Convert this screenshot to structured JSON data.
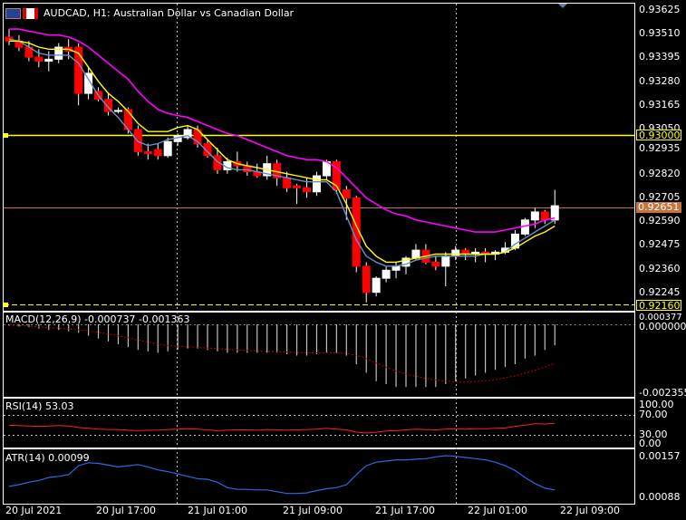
{
  "window": {
    "title": "AUDCAD, H1:  Australian Dollar vs Canadian Dollar"
  },
  "colors": {
    "background": "#000000",
    "grid": "#c0c0c0",
    "bull_body": "#ffffff",
    "bear_body": "#ff0000",
    "ma_fast": "#ffff00",
    "ma_mid": "#6a8fc8",
    "ma_slow": "#ff00ff",
    "hline": "#ffff00",
    "bid_line": "#c8733a",
    "macd_hist": "#c0c0c0",
    "macd_signal": "#c00000",
    "rsi_line": "#ff2020",
    "atr_line": "#2a6be0"
  },
  "price_axis": [
    "0.93625",
    "0.93510",
    "0.93395",
    "0.93280",
    "0.93165",
    "0.93050",
    "0.92935",
    "0.92820",
    "0.92705",
    "0.92590",
    "0.92475",
    "0.92360",
    "0.92245"
  ],
  "tags": {
    "level_high": "0.93000",
    "current_bid": "0.92651",
    "level_low": "0.92160"
  },
  "time_axis": [
    "20 Jul 2021",
    "20 Jul 17:00",
    "21 Jul 01:00",
    "21 Jul 09:00",
    "21 Jul 17:00",
    "22 Jul 01:00",
    "22 Jul 09:00"
  ],
  "macd": {
    "label": "MACD(12,26,9) -0.000737 -0.001363",
    "axis": [
      "0.000377",
      "0.000000",
      "-0.002355"
    ]
  },
  "rsi": {
    "label": "RSI(14) 53.03",
    "axis": [
      "100.00",
      "70.00",
      "30.00",
      "0.00"
    ]
  },
  "atr": {
    "label": "ATR(14) 0.00099",
    "axis": [
      "0.00157",
      "0.00088"
    ]
  },
  "chart_data": {
    "type": "candlestick",
    "symbol": "AUDCAD",
    "timeframe": "H1",
    "ylim": [
      0.9216,
      0.93625
    ],
    "candles": [
      {
        "o": 0.9349,
        "h": 0.9353,
        "l": 0.9345,
        "c": 0.9347
      },
      {
        "o": 0.9347,
        "h": 0.935,
        "l": 0.9342,
        "c": 0.9344
      },
      {
        "o": 0.9344,
        "h": 0.9347,
        "l": 0.9337,
        "c": 0.9339
      },
      {
        "o": 0.9339,
        "h": 0.9343,
        "l": 0.9334,
        "c": 0.9337
      },
      {
        "o": 0.9337,
        "h": 0.9342,
        "l": 0.9332,
        "c": 0.9338
      },
      {
        "o": 0.9338,
        "h": 0.9346,
        "l": 0.9336,
        "c": 0.9344
      },
      {
        "o": 0.9344,
        "h": 0.9348,
        "l": 0.9338,
        "c": 0.9342
      },
      {
        "o": 0.9344,
        "h": 0.9346,
        "l": 0.9315,
        "c": 0.9321
      },
      {
        "o": 0.9321,
        "h": 0.9334,
        "l": 0.9318,
        "c": 0.9331
      },
      {
        "o": 0.9322,
        "h": 0.9324,
        "l": 0.9317,
        "c": 0.9318
      },
      {
        "o": 0.9318,
        "h": 0.9321,
        "l": 0.931,
        "c": 0.9312
      },
      {
        "o": 0.9312,
        "h": 0.9314,
        "l": 0.9311,
        "c": 0.93125
      },
      {
        "o": 0.9313,
        "h": 0.9314,
        "l": 0.9301,
        "c": 0.9303
      },
      {
        "o": 0.9303,
        "h": 0.9305,
        "l": 0.929,
        "c": 0.9292
      },
      {
        "o": 0.9292,
        "h": 0.9296,
        "l": 0.9288,
        "c": 0.9291
      },
      {
        "o": 0.9293,
        "h": 0.9296,
        "l": 0.9288,
        "c": 0.929
      },
      {
        "o": 0.929,
        "h": 0.9299,
        "l": 0.9289,
        "c": 0.9297
      },
      {
        "o": 0.9297,
        "h": 0.9301,
        "l": 0.9295,
        "c": 0.93
      },
      {
        "o": 0.9299,
        "h": 0.9305,
        "l": 0.9298,
        "c": 0.9303
      },
      {
        "o": 0.9303,
        "h": 0.9305,
        "l": 0.9294,
        "c": 0.9296
      },
      {
        "o": 0.9296,
        "h": 0.9298,
        "l": 0.9289,
        "c": 0.929
      },
      {
        "o": 0.929,
        "h": 0.9294,
        "l": 0.9281,
        "c": 0.9283
      },
      {
        "o": 0.9283,
        "h": 0.9289,
        "l": 0.9281,
        "c": 0.9287
      },
      {
        "o": 0.9287,
        "h": 0.9292,
        "l": 0.9282,
        "c": 0.9285
      },
      {
        "o": 0.9285,
        "h": 0.9287,
        "l": 0.928,
        "c": 0.9282
      },
      {
        "o": 0.9282,
        "h": 0.9286,
        "l": 0.9279,
        "c": 0.928
      },
      {
        "o": 0.928,
        "h": 0.929,
        "l": 0.9278,
        "c": 0.9286
      },
      {
        "o": 0.9286,
        "h": 0.9288,
        "l": 0.9275,
        "c": 0.9279
      },
      {
        "o": 0.9279,
        "h": 0.9282,
        "l": 0.9272,
        "c": 0.9274
      },
      {
        "o": 0.9275,
        "h": 0.9276,
        "l": 0.9266,
        "c": 0.9274
      },
      {
        "o": 0.9274,
        "h": 0.9279,
        "l": 0.9269,
        "c": 0.9272
      },
      {
        "o": 0.9272,
        "h": 0.9282,
        "l": 0.927,
        "c": 0.928
      },
      {
        "o": 0.928,
        "h": 0.9288,
        "l": 0.9278,
        "c": 0.9287
      },
      {
        "o": 0.9287,
        "h": 0.9288,
        "l": 0.9271,
        "c": 0.9273
      },
      {
        "o": 0.9273,
        "h": 0.9275,
        "l": 0.9258,
        "c": 0.9269
      },
      {
        "o": 0.9269,
        "h": 0.927,
        "l": 0.9232,
        "c": 0.9235
      },
      {
        "o": 0.9235,
        "h": 0.9237,
        "l": 0.9217,
        "c": 0.9222
      },
      {
        "o": 0.9222,
        "h": 0.923,
        "l": 0.922,
        "c": 0.9229
      },
      {
        "o": 0.9229,
        "h": 0.9235,
        "l": 0.9227,
        "c": 0.9233
      },
      {
        "o": 0.9233,
        "h": 0.9237,
        "l": 0.9229,
        "c": 0.9235
      },
      {
        "o": 0.9235,
        "h": 0.924,
        "l": 0.9231,
        "c": 0.9239
      },
      {
        "o": 0.9239,
        "h": 0.9246,
        "l": 0.9238,
        "c": 0.9243
      },
      {
        "o": 0.9243,
        "h": 0.9246,
        "l": 0.9236,
        "c": 0.9237
      },
      {
        "o": 0.9237,
        "h": 0.924,
        "l": 0.9233,
        "c": 0.9235
      },
      {
        "o": 0.9235,
        "h": 0.9242,
        "l": 0.9225,
        "c": 0.924
      },
      {
        "o": 0.924,
        "h": 0.9245,
        "l": 0.9238,
        "c": 0.9243
      },
      {
        "o": 0.9243,
        "h": 0.9244,
        "l": 0.9238,
        "c": 0.9241
      },
      {
        "o": 0.9241,
        "h": 0.9244,
        "l": 0.9237,
        "c": 0.9242
      },
      {
        "o": 0.9242,
        "h": 0.9244,
        "l": 0.9237,
        "c": 0.9241
      },
      {
        "o": 0.9241,
        "h": 0.9243,
        "l": 0.9238,
        "c": 0.9242
      },
      {
        "o": 0.9242,
        "h": 0.9247,
        "l": 0.9241,
        "c": 0.9244
      },
      {
        "o": 0.9244,
        "h": 0.9253,
        "l": 0.9243,
        "c": 0.9251
      },
      {
        "o": 0.9251,
        "h": 0.9259,
        "l": 0.925,
        "c": 0.9258
      },
      {
        "o": 0.9258,
        "h": 0.9264,
        "l": 0.9254,
        "c": 0.9262
      },
      {
        "o": 0.9262,
        "h": 0.9263,
        "l": 0.9256,
        "c": 0.9258
      },
      {
        "o": 0.9258,
        "h": 0.9273,
        "l": 0.9256,
        "c": 0.92651
      }
    ],
    "ma_fast": [
      0.9347,
      0.9347,
      0.9346,
      0.9344,
      0.9343,
      0.9343,
      0.9343,
      0.9341,
      0.9334,
      0.9327,
      0.9321,
      0.9317,
      0.9312,
      0.9306,
      0.9302,
      0.9302,
      0.9302,
      0.9304,
      0.9305,
      0.9303,
      0.9298,
      0.9293,
      0.9288,
      0.9286,
      0.9285,
      0.9284,
      0.9283,
      0.9282,
      0.9281,
      0.928,
      0.9279,
      0.9278,
      0.9278,
      0.9275,
      0.9266,
      0.9255,
      0.9245,
      0.924,
      0.9237,
      0.9237,
      0.9238,
      0.9239,
      0.924,
      0.9241,
      0.9241,
      0.9241,
      0.9241,
      0.9241,
      0.9241,
      0.9241,
      0.9242,
      0.9244,
      0.9247,
      0.925,
      0.9252,
      0.9255
    ],
    "ma_mid": [
      0.9348,
      0.9347,
      0.9344,
      0.9341,
      0.934,
      0.934,
      0.934,
      0.9336,
      0.9328,
      0.932,
      0.9314,
      0.9309,
      0.9303,
      0.9297,
      0.9295,
      0.9296,
      0.9298,
      0.9299,
      0.93,
      0.9297,
      0.9292,
      0.9287,
      0.9284,
      0.9283,
      0.9283,
      0.9282,
      0.9281,
      0.928,
      0.9279,
      0.9278,
      0.9277,
      0.9277,
      0.9277,
      0.9272,
      0.926,
      0.9248,
      0.924,
      0.9237,
      0.9235,
      0.9235,
      0.9236,
      0.9238,
      0.9239,
      0.924,
      0.924,
      0.924,
      0.924,
      0.924,
      0.9241,
      0.9241,
      0.9242,
      0.9246,
      0.9249,
      0.9252,
      0.9255,
      0.9258
    ],
    "ma_slow": [
      0.9353,
      0.9353,
      0.9352,
      0.9351,
      0.935,
      0.935,
      0.9349,
      0.9347,
      0.9344,
      0.934,
      0.9336,
      0.9332,
      0.9328,
      0.9322,
      0.9317,
      0.9313,
      0.9311,
      0.931,
      0.9309,
      0.9307,
      0.9305,
      0.9303,
      0.9301,
      0.93,
      0.9298,
      0.9296,
      0.9294,
      0.9292,
      0.929,
      0.9289,
      0.9288,
      0.9288,
      0.9287,
      0.9284,
      0.9279,
      0.9274,
      0.9269,
      0.9266,
      0.9263,
      0.9261,
      0.926,
      0.9258,
      0.9257,
      0.9256,
      0.9255,
      0.9254,
      0.9253,
      0.9252,
      0.9252,
      0.9252,
      0.9253,
      0.9254,
      0.9255,
      0.9256,
      0.9258,
      0.9259
    ],
    "macd_hist": [
      -5e-05,
      -8e-05,
      -0.0001,
      -0.00015,
      -0.0002,
      -0.0002,
      -0.00025,
      -0.0003,
      -0.0004,
      -0.0005,
      -0.0006,
      -0.0007,
      -0.0008,
      -0.0009,
      -0.00095,
      -0.001,
      -0.00095,
      -0.0009,
      -0.00085,
      -0.00085,
      -0.0009,
      -0.00095,
      -0.001,
      -0.001,
      -0.001,
      -0.001,
      -0.001,
      -0.001,
      -0.00105,
      -0.0011,
      -0.0011,
      -0.00105,
      -0.001,
      -0.001,
      -0.0011,
      -0.0014,
      -0.0017,
      -0.002,
      -0.0021,
      -0.0022,
      -0.0022,
      -0.0022,
      -0.0022,
      -0.0022,
      -0.0021,
      -0.002,
      -0.0019,
      -0.0018,
      -0.0017,
      -0.0016,
      -0.0015,
      -0.0014,
      -0.0012,
      -0.0011,
      -0.0009,
      -0.000737
    ],
    "macd_signal": [
      -2e-05,
      -4e-05,
      -6e-05,
      -9e-05,
      -0.00012,
      -0.00014,
      -0.00016,
      -0.00019,
      -0.00023,
      -0.00028,
      -0.00034,
      -0.0004,
      -0.00047,
      -0.00055,
      -0.00062,
      -0.00069,
      -0.00074,
      -0.00077,
      -0.00079,
      -0.00081,
      -0.00083,
      -0.00085,
      -0.00088,
      -0.0009,
      -0.00092,
      -0.00094,
      -0.00095,
      -0.00096,
      -0.00097,
      -0.00099,
      -0.001,
      -0.001,
      -0.001,
      -0.001,
      -0.00102,
      -0.00109,
      -0.0012,
      -0.00136,
      -0.00151,
      -0.00164,
      -0.00174,
      -0.00183,
      -0.0019,
      -0.00196,
      -0.002,
      -0.00203,
      -0.00203,
      -0.00201,
      -0.00198,
      -0.00194,
      -0.00188,
      -0.00181,
      -0.00172,
      -0.00162,
      -0.0015,
      -0.001363
    ],
    "rsi": [
      48,
      47,
      46,
      45,
      46,
      47,
      46,
      42,
      40,
      38,
      37,
      37,
      35,
      34,
      35,
      35,
      37,
      38,
      39,
      38,
      36,
      34,
      35,
      36,
      36,
      35,
      37,
      36,
      35,
      36,
      37,
      38,
      40,
      38,
      36,
      30,
      28,
      30,
      33,
      34,
      36,
      38,
      37,
      36,
      38,
      39,
      38,
      39,
      39,
      40,
      41,
      45,
      48,
      52,
      51,
      53.03
    ],
    "atr": [
      0.00105,
      0.00108,
      0.00112,
      0.00115,
      0.0012,
      0.00122,
      0.00125,
      0.0014,
      0.00145,
      0.00144,
      0.00141,
      0.00138,
      0.0014,
      0.00142,
      0.00138,
      0.00133,
      0.0013,
      0.00126,
      0.00122,
      0.00118,
      0.00117,
      0.00112,
      0.00103,
      0.001,
      0.001,
      0.00099,
      0.00099,
      0.00096,
      0.00093,
      0.00093,
      0.00094,
      0.00098,
      0.00101,
      0.00103,
      0.00108,
      0.00125,
      0.0014,
      0.00146,
      0.00148,
      0.0015,
      0.0015,
      0.00151,
      0.00152,
      0.00155,
      0.00157,
      0.00156,
      0.00154,
      0.00152,
      0.0015,
      0.00146,
      0.0014,
      0.00132,
      0.0012,
      0.0011,
      0.00102,
      0.00099
    ]
  }
}
